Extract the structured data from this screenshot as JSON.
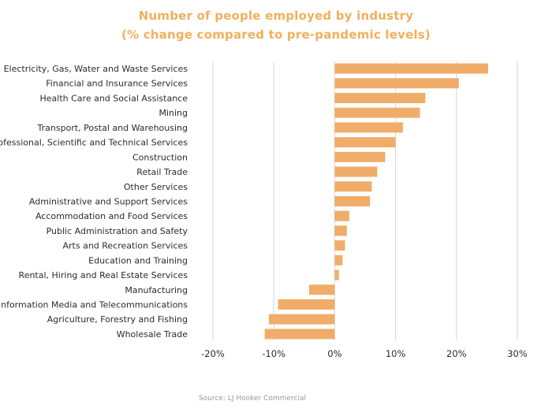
{
  "chart_data": {
    "type": "bar",
    "orientation": "horizontal",
    "title": "Number of people employed by industry",
    "subtitle": "(% change compared to pre-pandemic levels)",
    "categories": [
      "Electricity, Gas, Water and Waste Services",
      "Financial and Insurance Services",
      "Health Care and Social Assistance",
      "Mining",
      "Transport, Postal and Warehousing",
      "Professional, Scientific and Technical Services",
      "Construction",
      "Retail Trade",
      "Other Services",
      "Administrative and Support Services",
      "Accommodation and Food Services",
      "Public Administration and Safety",
      "Arts and Recreation Services",
      "Education and Training",
      "Rental, Hiring and Real Estate Services",
      "Manufacturing",
      "Information Media and Telecommunications",
      "Agriculture, Forestry and Fishing",
      "Wholesale Trade"
    ],
    "values": [
      25.2,
      20.4,
      14.9,
      14.0,
      11.2,
      10.0,
      8.3,
      7.0,
      6.1,
      5.8,
      2.4,
      2.0,
      1.7,
      1.3,
      0.7,
      -4.2,
      -9.3,
      -10.8,
      -11.5
    ],
    "xlim": [
      -20,
      30
    ],
    "xticks": [
      -20,
      -10,
      0,
      10,
      20,
      30
    ],
    "tick_labels": [
      "-20%",
      "-10%",
      "0%",
      "10%",
      "20%",
      "30%"
    ],
    "grid": "vertical",
    "bar_color": "#f0ad6a",
    "source": "Source: LJ Hooker Commercial"
  }
}
